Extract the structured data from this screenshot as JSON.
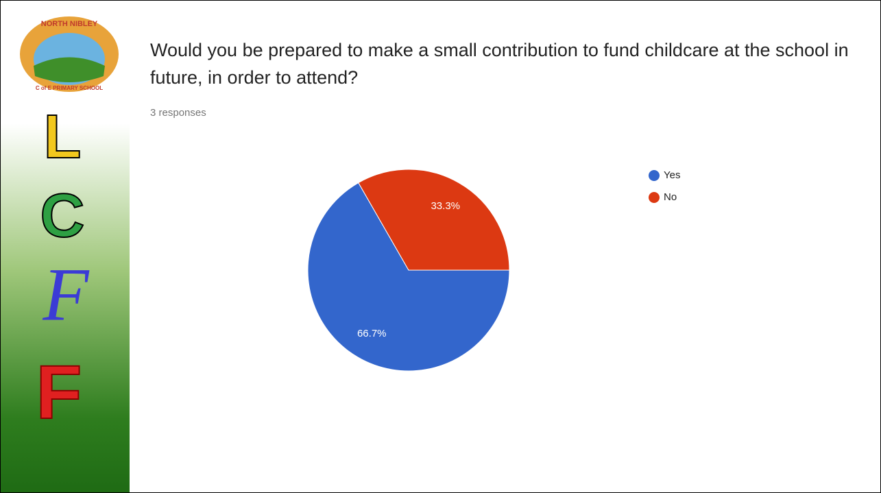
{
  "sidebar": {
    "logo_top": "NORTH NIBLEY",
    "logo_bottom": "C of E PRIMARY SCHOOL",
    "letters": [
      "L",
      "C",
      "F",
      "F"
    ]
  },
  "chart_data": {
    "type": "pie",
    "title": "Would you be prepared to make a small contribution to fund childcare at the school in future, in order to attend?",
    "subtitle": "3 responses",
    "categories": [
      "Yes",
      "No"
    ],
    "values": [
      66.7,
      33.3
    ],
    "value_labels": [
      "66.7%",
      "33.3%"
    ],
    "colors": [
      "#3366cc",
      "#dc3912"
    ],
    "legend": "right"
  }
}
